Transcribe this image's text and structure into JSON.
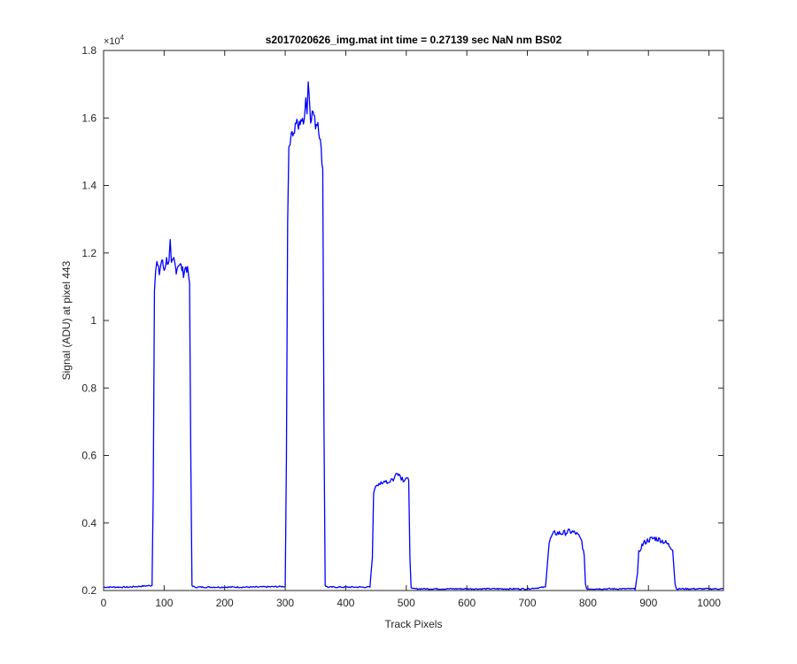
{
  "chart_data": {
    "type": "line",
    "title": "s2017020626_img.mat int time = 0.27139 sec  NaN nm BS02",
    "xlabel": "Track Pixels",
    "ylabel": "Signal (ADU) at pixel 443",
    "y_exponent_label": "×10",
    "y_exponent_power": "4",
    "xlim": [
      0,
      1024
    ],
    "ylim": [
      0.2,
      1.8
    ],
    "y_scale_factor": 10000,
    "x_ticks": [
      0,
      100,
      200,
      300,
      400,
      500,
      600,
      700,
      800,
      900,
      1000
    ],
    "x_tick_labels": [
      "0",
      "100",
      "200",
      "300",
      "400",
      "500",
      "600",
      "700",
      "800",
      "900",
      "1000"
    ],
    "y_ticks": [
      0.2,
      0.4,
      0.6,
      0.8,
      1.0,
      1.2,
      1.4,
      1.6,
      1.8
    ],
    "y_tick_labels": [
      "0.2",
      "0.4",
      "0.6",
      "0.8",
      "1",
      "1.2",
      "1.4",
      "1.6",
      "1.8"
    ],
    "grid": false,
    "series_color": "#0000ff",
    "series": [
      {
        "x": [
          0,
          40,
          80,
          82,
          84,
          86,
          88,
          92,
          96,
          100,
          104,
          108,
          110,
          112,
          116,
          120,
          124,
          128,
          132,
          136,
          140,
          142,
          144,
          146,
          150,
          200,
          250,
          300,
          302,
          304,
          306,
          308,
          310,
          314,
          318,
          322,
          326,
          330,
          334,
          336,
          338,
          342,
          346,
          350,
          354,
          358,
          362,
          364,
          366,
          370,
          400,
          440,
          444,
          446,
          448,
          450,
          455,
          460,
          465,
          470,
          475,
          480,
          485,
          490,
          495,
          500,
          504,
          506,
          508,
          510,
          550,
          600,
          650,
          700,
          730,
          734,
          736,
          738,
          740,
          745,
          750,
          760,
          770,
          780,
          785,
          790,
          794,
          796,
          798,
          800,
          840,
          878,
          882,
          884,
          886,
          888,
          892,
          900,
          910,
          920,
          930,
          940,
          942,
          944,
          946,
          948,
          980,
          1024
        ],
        "y": [
          0.21,
          0.21,
          0.215,
          0.5,
          1.1,
          1.15,
          1.17,
          1.14,
          1.18,
          1.15,
          1.18,
          1.17,
          1.23,
          1.16,
          1.18,
          1.15,
          1.17,
          1.16,
          1.14,
          1.16,
          1.14,
          1.1,
          0.6,
          0.215,
          0.21,
          0.21,
          0.21,
          0.212,
          0.6,
          1.3,
          1.5,
          1.52,
          1.57,
          1.55,
          1.59,
          1.57,
          1.6,
          1.58,
          1.66,
          1.62,
          1.71,
          1.6,
          1.62,
          1.58,
          1.59,
          1.53,
          1.45,
          0.7,
          0.215,
          0.21,
          0.21,
          0.21,
          0.3,
          0.48,
          0.505,
          0.515,
          0.52,
          0.51,
          0.53,
          0.52,
          0.53,
          0.53,
          0.555,
          0.54,
          0.53,
          0.535,
          0.52,
          0.3,
          0.21,
          0.205,
          0.205,
          0.205,
          0.205,
          0.205,
          0.21,
          0.3,
          0.34,
          0.35,
          0.36,
          0.37,
          0.37,
          0.37,
          0.375,
          0.37,
          0.36,
          0.345,
          0.3,
          0.22,
          0.205,
          0.205,
          0.205,
          0.205,
          0.25,
          0.31,
          0.32,
          0.33,
          0.34,
          0.35,
          0.355,
          0.35,
          0.34,
          0.325,
          0.27,
          0.22,
          0.205,
          0.205,
          0.205,
          0.205
        ]
      }
    ]
  }
}
